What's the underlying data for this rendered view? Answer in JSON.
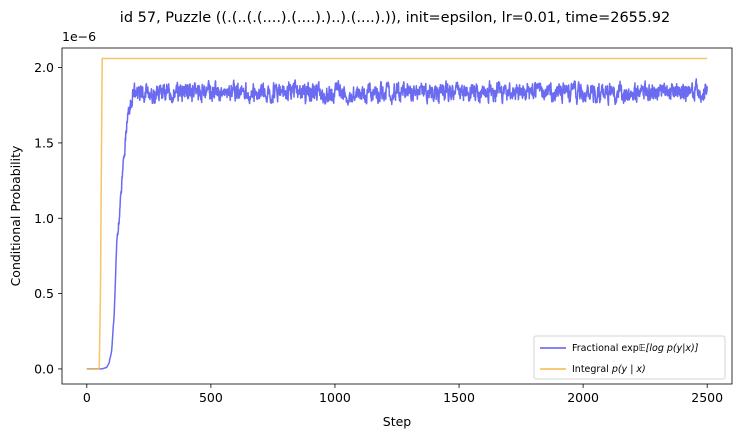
{
  "chart_data": {
    "type": "line",
    "title": "id 57, Puzzle ((.(..(.(....).(....).)..).(....).)), init=epsilon, lr=0.01, time=2655.92",
    "xlabel": "Step",
    "ylabel": "Conditional Probability",
    "y_offset_label": "1e−6",
    "xlim": [
      -100,
      2600
    ],
    "ylim": [
      -0.1,
      2.13
    ],
    "y_scale_factor": 1e-06,
    "x_ticks": [
      0,
      500,
      1000,
      1500,
      2000,
      2500
    ],
    "x_tick_labels": [
      "0",
      "500",
      "1000",
      "1500",
      "2000",
      "2500"
    ],
    "y_ticks": [
      0.0,
      0.5,
      1.0,
      1.5,
      2.0
    ],
    "y_tick_labels": [
      "0.0",
      "0.5",
      "1.0",
      "1.5",
      "2.0"
    ],
    "grid": false,
    "legend_position": "lower right",
    "series": [
      {
        "name": "Fractional exp𝔼[log p(y|x)]",
        "color": "#5b5bf0",
        "noisy": true,
        "noise_amp": 0.055,
        "x": [
          0,
          60,
          80,
          90,
          100,
          110,
          120,
          130,
          140,
          150,
          160,
          170,
          180,
          200,
          300,
          500,
          1000,
          1500,
          2000,
          2500
        ],
        "y": [
          0.0,
          0.0,
          0.01,
          0.04,
          0.12,
          0.35,
          0.8,
          1.0,
          1.2,
          1.45,
          1.6,
          1.72,
          1.8,
          1.83,
          1.83,
          1.84,
          1.83,
          1.84,
          1.83,
          1.84
        ]
      },
      {
        "name": "Integral p(y | x)",
        "color": "#f5b94a",
        "noisy": false,
        "x": [
          0,
          50,
          52,
          55,
          58,
          62,
          2500
        ],
        "y": [
          0.0,
          0.0,
          0.2,
          0.5,
          1.2,
          2.06,
          2.06
        ]
      }
    ]
  },
  "legend": {
    "fractional_prefix": "Fractional exp",
    "fractional_math": "𝔼[log p(y|x)]",
    "integral_prefix": "Integral ",
    "integral_math": "p(y | x)"
  }
}
